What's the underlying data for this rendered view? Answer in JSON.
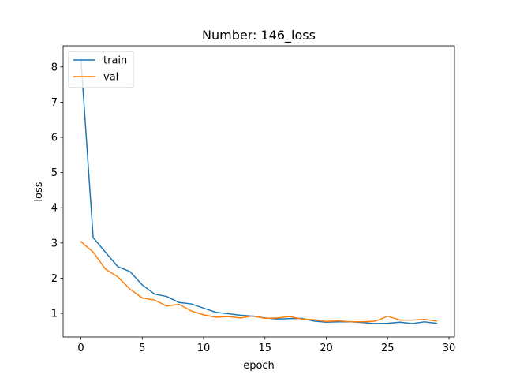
{
  "chart_data": {
    "type": "line",
    "title": "Number: 146_loss",
    "xlabel": "epoch",
    "ylabel": "loss",
    "xlim": [
      -1.45,
      30.45
    ],
    "ylim": [
      0.33,
      8.6
    ],
    "xticks": [
      0,
      5,
      10,
      15,
      20,
      25,
      30
    ],
    "yticks": [
      1,
      2,
      3,
      4,
      5,
      6,
      7,
      8
    ],
    "grid": false,
    "legend_position": "top-left",
    "x": [
      0,
      1,
      2,
      3,
      4,
      5,
      6,
      7,
      8,
      9,
      10,
      11,
      12,
      13,
      14,
      15,
      16,
      17,
      18,
      19,
      20,
      21,
      22,
      23,
      24,
      25,
      26,
      27,
      28,
      29
    ],
    "series": [
      {
        "name": "train",
        "color": "#1f77b4",
        "values": [
          8.23,
          3.15,
          2.74,
          2.33,
          2.19,
          1.81,
          1.55,
          1.48,
          1.31,
          1.27,
          1.15,
          1.03,
          0.99,
          0.95,
          0.92,
          0.87,
          0.84,
          0.85,
          0.86,
          0.78,
          0.75,
          0.76,
          0.76,
          0.74,
          0.71,
          0.72,
          0.75,
          0.71,
          0.76,
          0.72
        ]
      },
      {
        "name": "val",
        "color": "#ff7f0e",
        "values": [
          3.04,
          2.74,
          2.26,
          2.04,
          1.69,
          1.44,
          1.38,
          1.21,
          1.26,
          1.07,
          0.96,
          0.89,
          0.91,
          0.87,
          0.93,
          0.86,
          0.87,
          0.91,
          0.84,
          0.82,
          0.77,
          0.79,
          0.76,
          0.76,
          0.78,
          0.92,
          0.81,
          0.81,
          0.83,
          0.78
        ]
      }
    ]
  }
}
